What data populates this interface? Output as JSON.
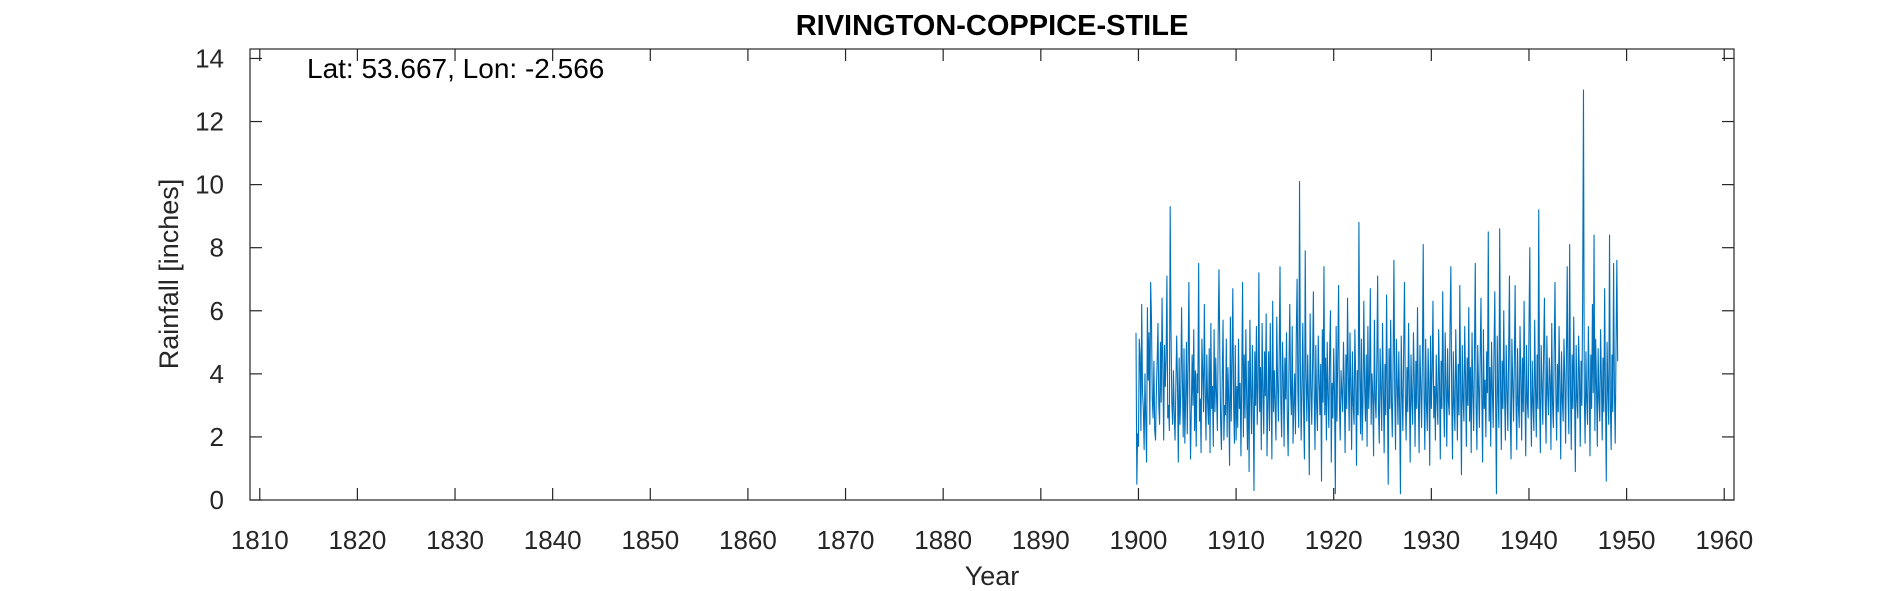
{
  "chart_data": {
    "type": "line",
    "title": "RIVINGTON-COPPICE-STILE",
    "annotation": "Lat: 53.667, Lon: -2.566",
    "xlabel": "Year",
    "ylabel": "Rainfall [inches]",
    "xlim": [
      1809,
      1961
    ],
    "ylim": [
      0,
      14.3
    ],
    "xticks": [
      1810,
      1820,
      1830,
      1840,
      1850,
      1860,
      1870,
      1880,
      1890,
      1900,
      1910,
      1920,
      1930,
      1940,
      1950,
      1960
    ],
    "yticks": [
      0,
      2,
      4,
      6,
      8,
      10,
      12,
      14
    ],
    "grid": false,
    "color": "#0072BD",
    "series": [
      {
        "x_start": 1899.75,
        "x_step": 0.0833333,
        "values": [
          5.3,
          0.5,
          2.1,
          1.7,
          5.1,
          4.6,
          2.2,
          6.2,
          3.4,
          2.9,
          1.6,
          4.0,
          2.5,
          1.2,
          6.1,
          3.8,
          5.3,
          2.4,
          6.9,
          5.8,
          3.2,
          2.6,
          4.4,
          2.2,
          1.9,
          3.4,
          4.4,
          5.6,
          3.0,
          2.4,
          5.0,
          3.1,
          6.4,
          4.2,
          1.9,
          4.9,
          3.6,
          4.5,
          7.1,
          2.6,
          3.0,
          2.2,
          9.3,
          5.4,
          3.1,
          2.4,
          4.1,
          2.7,
          1.9,
          3.6,
          5.2,
          3.7,
          1.2,
          4.5,
          2.4,
          3.3,
          6.1,
          3.9,
          2.0,
          4.8,
          1.8,
          3.2,
          5.0,
          2.1,
          4.3,
          6.9,
          3.5,
          1.3,
          2.9,
          4.6,
          3.0,
          5.4,
          2.2,
          4.1,
          1.7,
          4.0,
          3.4,
          7.5,
          2.5,
          3.2,
          1.5,
          5.1,
          4.0,
          2.8,
          6.2,
          3.5,
          1.9,
          4.6,
          3.1,
          2.4,
          4.8,
          1.5,
          5.6,
          2.9,
          3.6,
          1.7,
          5.4,
          2.8,
          4.5,
          3.3,
          2.2,
          5.3,
          7.3,
          4.7,
          2.5,
          1.6,
          3.9,
          5.7,
          1.9,
          3.0,
          2.7,
          5.1,
          2.0,
          4.2,
          3.1,
          1.1,
          5.8,
          2.5,
          4.3,
          6.7,
          3.0,
          1.8,
          4.9,
          1.9,
          3.6,
          2.3,
          5.1,
          2.9,
          3.7,
          1.4,
          4.0,
          6.9,
          2.0,
          4.6,
          2.6,
          5.4,
          3.2,
          1.6,
          4.4,
          0.9,
          5.7,
          3.4,
          2.1,
          4.9,
          3.1,
          0.3,
          4.7,
          3.0,
          5.5,
          2.4,
          3.6,
          7.2,
          2.8,
          4.2,
          1.6,
          5.6,
          3.4,
          2.1,
          4.7,
          3.3,
          5.9,
          1.4,
          3.0,
          4.7,
          2.2,
          5.6,
          3.7,
          1.3,
          6.3,
          2.8,
          4.1,
          3.0,
          1.9,
          5.8,
          3.7,
          2.5,
          4.6,
          7.4,
          3.1,
          2.0,
          5.0,
          3.9,
          1.7,
          4.5,
          3.2,
          5.3,
          2.6,
          1.4,
          4.2,
          6.2,
          3.4,
          2.7,
          5.5,
          1.8,
          3.0,
          4.0,
          2.1,
          5.2,
          7.0,
          3.4,
          2.3,
          10.1,
          4.4,
          1.9,
          3.6,
          5.6,
          2.8,
          1.3,
          7.9,
          3.9,
          2.5,
          4.6,
          3.1,
          0.8,
          5.9,
          3.6,
          2.4,
          4.2,
          6.6,
          3.4,
          1.6,
          4.9,
          3.0,
          2.2,
          5.2,
          3.8,
          2.7,
          4.3,
          0.6,
          5.4,
          3.1,
          7.4,
          2.7,
          4.5,
          1.9,
          5.0,
          3.3,
          2.3,
          4.7,
          6.0,
          1.2,
          3.7,
          2.6,
          4.8,
          3.4,
          0.2,
          5.5,
          2.5,
          4.6,
          6.8,
          3.1,
          1.9,
          4.1,
          3.4,
          2.8,
          5.0,
          3.6,
          1.5,
          4.6,
          2.9,
          6.4,
          3.9,
          2.2,
          5.3,
          3.6,
          1.6,
          4.7,
          3.0,
          2.4,
          5.4,
          3.9,
          1.1,
          4.1,
          2.7,
          8.8,
          4.0,
          2.1,
          5.1,
          1.9,
          3.2,
          6.3,
          3.6,
          2.5,
          4.6,
          1.7,
          5.5,
          2.9,
          3.8,
          6.7,
          2.4,
          4.0,
          3.3,
          1.4,
          5.7,
          3.2,
          2.6,
          4.4,
          7.1,
          2.9,
          1.8,
          4.8,
          3.5,
          2.2,
          5.6,
          3.6,
          1.5,
          4.3,
          2.7,
          6.5,
          3.3,
          0.5,
          4.8,
          2.9,
          5.7,
          3.1,
          2.0,
          4.3,
          7.6,
          3.4,
          1.6,
          5.1,
          3.7,
          2.4,
          4.7,
          2.9,
          0.2,
          5.2,
          3.4,
          2.2,
          4.8,
          6.9,
          3.3,
          1.9,
          4.2,
          2.8,
          5.6,
          3.5,
          1.2,
          4.6,
          3.2,
          2.4,
          5.3,
          3.8,
          1.7,
          4.4,
          2.9,
          6.1,
          3.2,
          1.5,
          4.9,
          3.6,
          2.3,
          4.4,
          8.1,
          3.3,
          1.6,
          5.1,
          3.0,
          2.2,
          4.8,
          3.6,
          1.1,
          5.2,
          2.9,
          4.1,
          6.3,
          2.6,
          3.6,
          1.9,
          4.6,
          3.2,
          2.4,
          5.4,
          3.8,
          1.3,
          4.4,
          2.9,
          6.6,
          3.4,
          2.0,
          5.3,
          3.6,
          1.7,
          4.8,
          3.1,
          2.7,
          5.6,
          7.4,
          3.3,
          1.3,
          4.7,
          3.0,
          2.2,
          5.4,
          3.7,
          1.9,
          4.3,
          2.7,
          6.8,
          3.5,
          0.8,
          4.9,
          3.2,
          2.5,
          5.5,
          3.9,
          1.7,
          4.5,
          3.0,
          6.1,
          2.5,
          4.2,
          1.5,
          5.3,
          3.4,
          2.2,
          4.6,
          7.5,
          3.0,
          1.6,
          4.9,
          3.6,
          2.3,
          4.5,
          6.4,
          3.3,
          1.2,
          5.4,
          2.9,
          3.8,
          2.0,
          4.7,
          3.4,
          8.5,
          2.5,
          4.2,
          1.7,
          5.0,
          3.5,
          2.3,
          4.7,
          6.6,
          3.1,
          0.2,
          5.2,
          3.4,
          2.3,
          8.6,
          3.8,
          1.6,
          4.4,
          2.9,
          6.0,
          3.3,
          1.9,
          4.9,
          3.5,
          2.2,
          4.6,
          7.1,
          2.6,
          1.3,
          5.1,
          3.7,
          2.5,
          4.3,
          6.8,
          3.2,
          1.6,
          4.8,
          3.0,
          2.3,
          5.5,
          3.9,
          1.9,
          4.5,
          2.8,
          6.3,
          3.4,
          1.4,
          4.9,
          3.1,
          2.6,
          5.4,
          8.0,
          3.5,
          1.7,
          4.4,
          3.0,
          2.2,
          5.7,
          3.6,
          2.0,
          4.6,
          2.9,
          9.2,
          3.3,
          1.5,
          4.9,
          3.6,
          2.4,
          4.7,
          6.4,
          3.1,
          1.8,
          5.2,
          3.4,
          2.7,
          4.5,
          3.8,
          1.6,
          5.6,
          3.0,
          2.3,
          4.8,
          6.9,
          3.4,
          1.9,
          4.3,
          2.8,
          5.5,
          3.6,
          1.3,
          4.7,
          3.2,
          2.5,
          5.1,
          3.9,
          1.8,
          4.4,
          7.4,
          3.3,
          2.1,
          8.1,
          3.6,
          1.6,
          4.6,
          2.9,
          5.8,
          3.4,
          0.9,
          4.9,
          3.2,
          2.6,
          5.2,
          4.0,
          1.7,
          4.4,
          3.0,
          6.5,
          13.0,
          3.3,
          1.8,
          4.7,
          3.1,
          2.4,
          5.5,
          3.8,
          1.4,
          4.6,
          2.9,
          6.2,
          3.4,
          8.4,
          2.2,
          5.1,
          3.6,
          1.7,
          4.8,
          3.2,
          2.5,
          5.4,
          3.9,
          1.9,
          4.5,
          2.8,
          6.7,
          3.3,
          0.6,
          5.0,
          3.5,
          2.4,
          8.4,
          3.1,
          1.6,
          4.6,
          2.8,
          7.5,
          3.5,
          1.8,
          4.8,
          7.6,
          4.4
        ]
      }
    ]
  }
}
